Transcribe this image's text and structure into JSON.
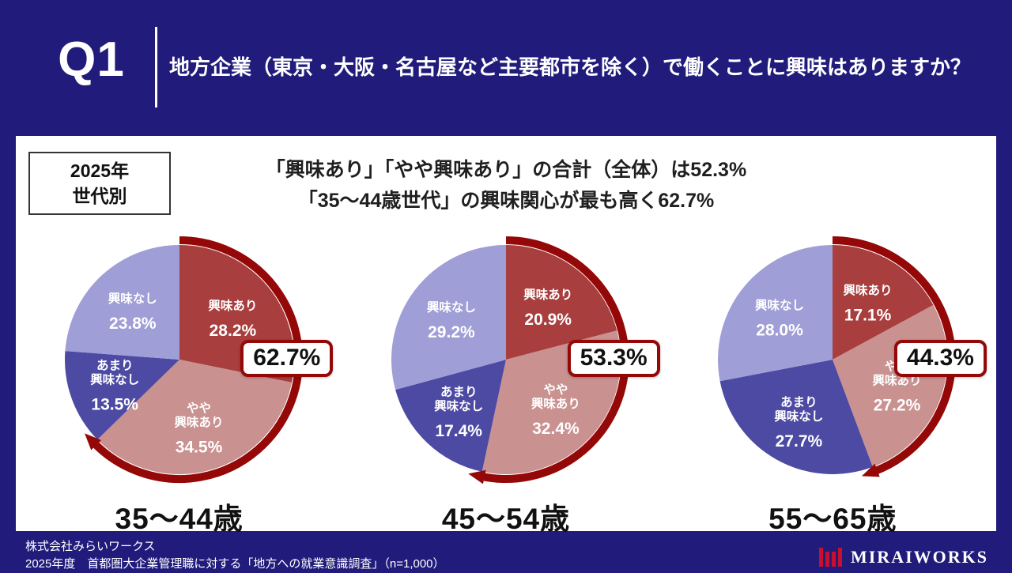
{
  "header": {
    "q_label": "Q1",
    "title": "地方企業（東京・大阪・名古屋など主要都市を除く）で働くことに興味はありますか？"
  },
  "panel": {
    "tag_lines": [
      "2025年",
      "世代別"
    ],
    "headline_lines": [
      "「興味あり」「やや興味あり」の合計（全体）は52.3%",
      "「35〜44歳世代」の興味関心が最も高く62.7%"
    ]
  },
  "colors": {
    "background_navy": "#211c7b",
    "panel_white": "#ffffff",
    "arrow_red": "#950808",
    "logo_red": "#c8102e"
  },
  "chart_data": [
    {
      "type": "pie",
      "title": "35〜44歳",
      "callout_label": "62.7%",
      "highlight_pct": 62.7,
      "legend_position": "inside",
      "segments": [
        {
          "label": "興味あり",
          "pct_label": "28.2%",
          "value": 28.2,
          "color": "#a93e3e"
        },
        {
          "label": "やや\n興味あり",
          "pct_label": "34.5%",
          "value": 34.5,
          "color": "#ca9191"
        },
        {
          "label": "あまり\n興味なし",
          "pct_label": "13.5%",
          "value": 13.5,
          "color": "#4d4aa4"
        },
        {
          "label": "興味なし",
          "pct_label": "23.8%",
          "value": 23.8,
          "color": "#9f9ed6"
        }
      ]
    },
    {
      "type": "pie",
      "title": "45〜54歳",
      "callout_label": "53.3%",
      "highlight_pct": 53.3,
      "legend_position": "inside",
      "segments": [
        {
          "label": "興味あり",
          "pct_label": "20.9%",
          "value": 20.9,
          "color": "#a93e3e"
        },
        {
          "label": "やや\n興味あり",
          "pct_label": "32.4%",
          "value": 32.4,
          "color": "#ca9191"
        },
        {
          "label": "あまり\n興味なし",
          "pct_label": "17.4%",
          "value": 17.4,
          "color": "#4d4aa4"
        },
        {
          "label": "興味なし",
          "pct_label": "29.2%",
          "value": 29.2,
          "color": "#9f9ed6"
        }
      ]
    },
    {
      "type": "pie",
      "title": "55〜65歳",
      "callout_label": "44.3%",
      "highlight_pct": 44.3,
      "legend_position": "inside",
      "segments": [
        {
          "label": "興味あり",
          "pct_label": "17.1%",
          "value": 17.1,
          "color": "#a93e3e"
        },
        {
          "label": "やや\n興味あり",
          "pct_label": "27.2%",
          "value": 27.2,
          "color": "#ca9191"
        },
        {
          "label": "あまり\n興味なし",
          "pct_label": "27.7%",
          "value": 27.7,
          "color": "#4d4aa4"
        },
        {
          "label": "興味なし",
          "pct_label": "28.0%",
          "value": 28.0,
          "color": "#9f9ed6"
        }
      ]
    }
  ],
  "footer": {
    "company": "株式会社みらいワークス",
    "survey": "2025年度　首都圏大企業管理職に対する「地方への就業意識調査」（n=1,000）",
    "logo_text": "MIRAIWORKS"
  }
}
